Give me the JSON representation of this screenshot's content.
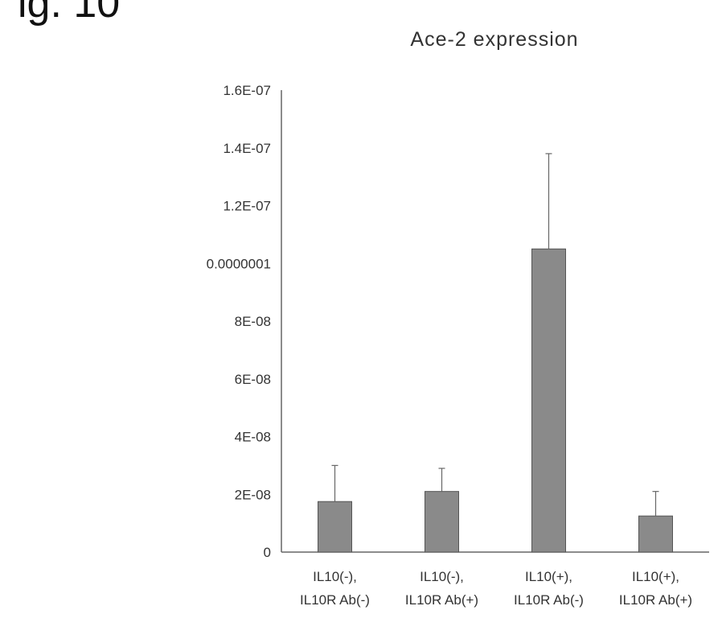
{
  "figure_label": "ig. 10",
  "chart_data": {
    "type": "bar",
    "title": "Ace-2 expression",
    "xlabel": "",
    "ylabel": "",
    "ylim": [
      0,
      1.6e-07
    ],
    "y_tick_labels": [
      "0",
      "2E-08",
      "4E-08",
      "6E-08",
      "8E-08",
      "0.0000001",
      "1.2E-07",
      "1.4E-07",
      "1.6E-07"
    ],
    "categories": [
      [
        "IL10(-),",
        "IL10R Ab(-)"
      ],
      [
        "IL10(-),",
        "IL10R Ab(+)"
      ],
      [
        "IL10(+),",
        "IL10R Ab(-)"
      ],
      [
        "IL10(+),",
        "IL10R Ab(+)"
      ]
    ],
    "values": [
      1.75e-08,
      2.1e-08,
      1.05e-07,
      1.25e-08
    ],
    "error_plus": [
      1.25e-08,
      8e-09,
      3.3e-08,
      8.5e-09
    ],
    "grid": false,
    "bar_color": "#8a8a8a"
  }
}
